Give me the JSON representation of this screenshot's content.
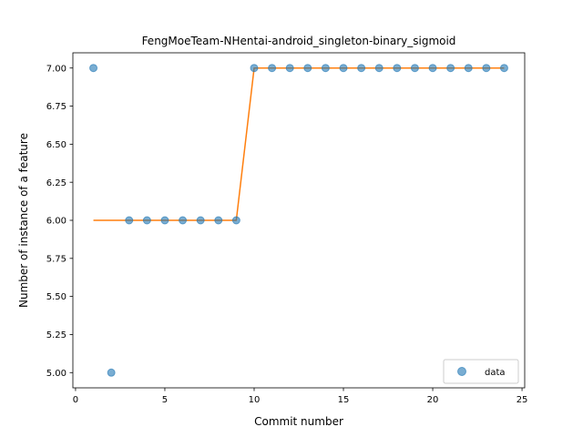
{
  "chart_data": {
    "type": "scatter",
    "title": "FengMoeTeam-NHentai-android_singleton-binary_sigmoid",
    "xlabel": "Commit number",
    "ylabel": "Number of instance of a feature",
    "xlim": [
      -0.15,
      25.15
    ],
    "ylim": [
      4.9,
      7.1
    ],
    "x_ticks": [
      0,
      5,
      10,
      15,
      20,
      25
    ],
    "y_ticks": [
      5.0,
      5.25,
      5.5,
      5.75,
      6.0,
      6.25,
      6.5,
      6.75,
      7.0
    ],
    "x_tick_labels": [
      "0",
      "5",
      "10",
      "15",
      "20",
      "25"
    ],
    "y_tick_labels": [
      "5.00",
      "5.25",
      "5.50",
      "5.75",
      "6.00",
      "6.25",
      "6.50",
      "6.75",
      "7.00"
    ],
    "grid": false,
    "legend_position": "lower-right",
    "series": [
      {
        "name": "data",
        "kind": "scatter",
        "color": "#1f77b4",
        "x": [
          1,
          2,
          3,
          4,
          5,
          6,
          7,
          8,
          9,
          10,
          11,
          12,
          13,
          14,
          15,
          16,
          17,
          18,
          19,
          20,
          21,
          22,
          23,
          24
        ],
        "y": [
          7,
          5,
          6,
          6,
          6,
          6,
          6,
          6,
          6,
          7,
          7,
          7,
          7,
          7,
          7,
          7,
          7,
          7,
          7,
          7,
          7,
          7,
          7,
          7
        ]
      },
      {
        "kind": "line",
        "color": "#ff7f0e",
        "x": [
          1,
          2,
          3,
          4,
          5,
          6,
          7,
          8,
          9,
          10,
          11,
          12,
          13,
          14,
          15,
          16,
          17,
          18,
          19,
          20,
          21,
          22,
          23,
          24
        ],
        "y": [
          6,
          6,
          6,
          6,
          6,
          6,
          6,
          6,
          6,
          7,
          7,
          7,
          7,
          7,
          7,
          7,
          7,
          7,
          7,
          7,
          7,
          7,
          7,
          7
        ]
      }
    ]
  }
}
